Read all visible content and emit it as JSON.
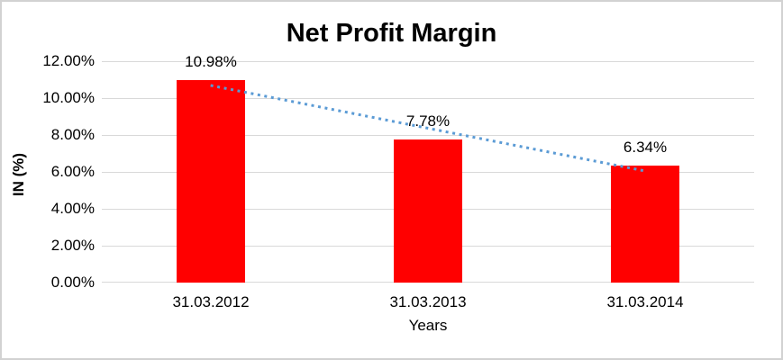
{
  "chart_data": {
    "type": "bar",
    "title": "Net Profit Margin",
    "xlabel": "Years",
    "ylabel": "IN (%)",
    "categories": [
      "31.03.2012",
      "31.03.2013",
      "31.03.2014"
    ],
    "values": [
      10.98,
      7.78,
      6.34
    ],
    "data_labels": [
      "10.98%",
      "7.78%",
      "6.34%"
    ],
    "ylim": [
      0,
      12
    ],
    "ytick_step": 2,
    "ytick_labels": [
      "0.00%",
      "2.00%",
      "4.00%",
      "6.00%",
      "8.00%",
      "10.00%",
      "12.00%"
    ],
    "grid": true,
    "legend": "none",
    "bar_color": "#ff0000",
    "gridline_color": "#d9d9d9",
    "trendline": {
      "type": "linear",
      "style": "dotted",
      "color": "#5b9bd5"
    }
  }
}
